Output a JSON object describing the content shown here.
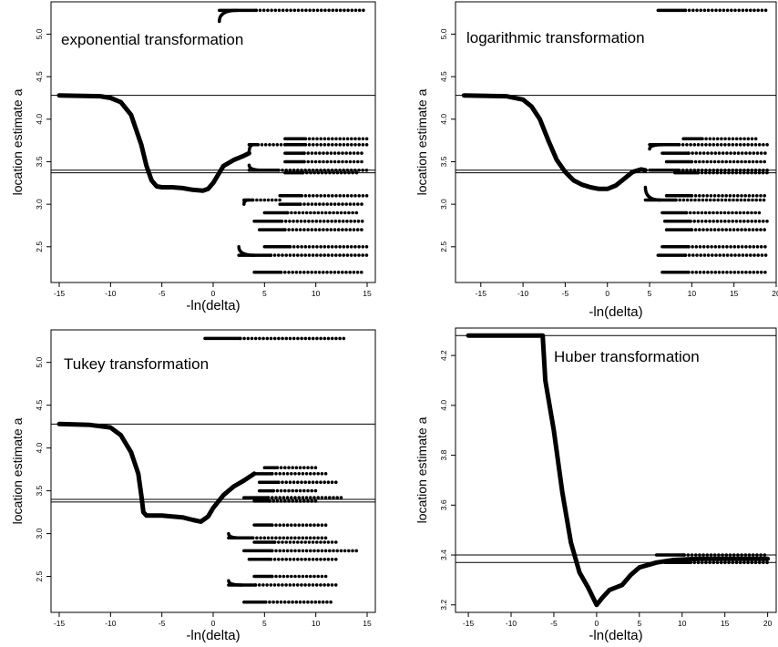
{
  "figure": {
    "ylabel": "location estimate   a",
    "xlabel": "-ln(delta)"
  },
  "chart_data": [
    {
      "type": "scatter",
      "title": "exponential transformation",
      "xlabel": "-ln(delta)",
      "ylabel": "location estimate   a",
      "xlim": [
        -15.8,
        15.8
      ],
      "ylim": [
        2.08,
        5.38
      ],
      "xticks": [
        -15,
        -10,
        -5,
        0,
        5,
        10,
        15
      ],
      "yticks": [
        2.5,
        3.0,
        3.5,
        4.0,
        4.5,
        5.0
      ],
      "hlines": [
        4.28,
        3.4,
        3.37
      ],
      "curve": [
        [
          -15,
          4.28
        ],
        [
          -11,
          4.27
        ],
        [
          -10,
          4.25
        ],
        [
          -9,
          4.2
        ],
        [
          -8,
          4.05
        ],
        [
          -7,
          3.7
        ],
        [
          -6.5,
          3.45
        ],
        [
          -6,
          3.28
        ],
        [
          -5.5,
          3.21
        ],
        [
          -5,
          3.2
        ],
        [
          -4,
          3.2
        ],
        [
          -3,
          3.19
        ],
        [
          -2,
          3.17
        ],
        [
          -1,
          3.16
        ],
        [
          -0.5,
          3.18
        ],
        [
          0,
          3.25
        ],
        [
          0.5,
          3.35
        ],
        [
          1,
          3.45
        ],
        [
          2,
          3.52
        ],
        [
          3,
          3.57
        ],
        [
          3.5,
          3.6
        ]
      ],
      "branches": [
        {
          "y": 5.28,
          "x": [
            0.6,
            15
          ],
          "start_y": 5.15
        },
        {
          "y": 3.7,
          "x": [
            3.5,
            7
          ],
          "start_y": 3.6
        },
        {
          "y": 3.77,
          "x": [
            7,
            15
          ]
        },
        {
          "y": 3.7,
          "x": [
            7,
            15
          ]
        },
        {
          "y": 3.6,
          "x": [
            7,
            14.5
          ]
        },
        {
          "y": 3.5,
          "x": [
            7,
            14.5
          ]
        },
        {
          "y": 3.4,
          "x": [
            3.5,
            15
          ],
          "start_y": 3.46
        },
        {
          "y": 3.37,
          "x": [
            7,
            14
          ]
        },
        {
          "y": 3.1,
          "x": [
            6.5,
            15
          ]
        },
        {
          "y": 3.05,
          "x": [
            3,
            6.5
          ],
          "start_y": 3.0
        },
        {
          "y": 3.0,
          "x": [
            6.5,
            14.5
          ]
        },
        {
          "y": 2.9,
          "x": [
            5,
            14
          ]
        },
        {
          "y": 2.8,
          "x": [
            4,
            14.8
          ]
        },
        {
          "y": 2.7,
          "x": [
            4.5,
            14.5
          ]
        },
        {
          "y": 2.5,
          "x": [
            5,
            15
          ]
        },
        {
          "y": 2.4,
          "x": [
            2.5,
            15
          ],
          "start_y": 2.5
        },
        {
          "y": 2.2,
          "x": [
            4,
            14.5
          ]
        }
      ]
    },
    {
      "type": "scatter",
      "title": "logarithmic transformation",
      "xlabel": "-ln(delta)",
      "ylabel": "location estimate   a",
      "xlim": [
        -18,
        20
      ],
      "ylim": [
        2.08,
        5.38
      ],
      "xticks": [
        -15,
        -10,
        -5,
        0,
        5,
        10,
        15,
        20
      ],
      "yticks": [
        2.5,
        3.0,
        3.5,
        4.0,
        4.5,
        5.0
      ],
      "hlines": [
        4.28,
        3.4,
        3.37
      ],
      "curve": [
        [
          -17,
          4.28
        ],
        [
          -12,
          4.27
        ],
        [
          -10,
          4.23
        ],
        [
          -9,
          4.15
        ],
        [
          -8,
          4.0
        ],
        [
          -7,
          3.75
        ],
        [
          -6,
          3.52
        ],
        [
          -5,
          3.38
        ],
        [
          -4,
          3.28
        ],
        [
          -3,
          3.23
        ],
        [
          -2,
          3.2
        ],
        [
          -1,
          3.18
        ],
        [
          0,
          3.18
        ],
        [
          1,
          3.22
        ],
        [
          2,
          3.3
        ],
        [
          3,
          3.38
        ],
        [
          4,
          3.41
        ],
        [
          4.5,
          3.4
        ]
      ],
      "branches": [
        {
          "y": 5.28,
          "x": [
            6,
            19
          ]
        },
        {
          "y": 3.77,
          "x": [
            9,
            18
          ]
        },
        {
          "y": 3.7,
          "x": [
            5,
            19
          ],
          "start_y": 3.65
        },
        {
          "y": 3.6,
          "x": [
            6.5,
            19
          ]
        },
        {
          "y": 3.5,
          "x": [
            7,
            19
          ]
        },
        {
          "y": 3.4,
          "x": [
            5,
            19
          ]
        },
        {
          "y": 3.37,
          "x": [
            8,
            19
          ]
        },
        {
          "y": 3.1,
          "x": [
            7,
            19
          ]
        },
        {
          "y": 3.05,
          "x": [
            4.5,
            19
          ],
          "start_y": 3.2
        },
        {
          "y": 2.9,
          "x": [
            6.5,
            18
          ]
        },
        {
          "y": 2.8,
          "x": [
            6.8,
            19
          ]
        },
        {
          "y": 2.7,
          "x": [
            7,
            19
          ]
        },
        {
          "y": 2.5,
          "x": [
            6.5,
            19
          ]
        },
        {
          "y": 2.4,
          "x": [
            6,
            19
          ]
        },
        {
          "y": 2.2,
          "x": [
            6.5,
            19
          ]
        }
      ]
    },
    {
      "type": "scatter",
      "title": "Tukey transformation",
      "xlabel": "-ln(delta)",
      "ylabel": "location estimate   a",
      "xlim": [
        -15.8,
        15.8
      ],
      "ylim": [
        2.08,
        5.38
      ],
      "xticks": [
        -15,
        -10,
        -5,
        0,
        5,
        10,
        15
      ],
      "yticks": [
        2.5,
        3.0,
        3.5,
        4.0,
        4.5,
        5.0
      ],
      "hlines": [
        4.28,
        3.4,
        3.37
      ],
      "curve": [
        [
          -15,
          4.28
        ],
        [
          -12,
          4.27
        ],
        [
          -10,
          4.24
        ],
        [
          -9,
          4.15
        ],
        [
          -8,
          3.95
        ],
        [
          -7.3,
          3.7
        ],
        [
          -7,
          3.45
        ],
        [
          -6.8,
          3.25
        ],
        [
          -6.5,
          3.21
        ],
        [
          -5,
          3.21
        ],
        [
          -4,
          3.2
        ],
        [
          -3,
          3.19
        ],
        [
          -2,
          3.16
        ],
        [
          -1.2,
          3.14
        ],
        [
          -0.5,
          3.2
        ],
        [
          0,
          3.3
        ],
        [
          1,
          3.45
        ],
        [
          2,
          3.55
        ],
        [
          3,
          3.62
        ],
        [
          4,
          3.7
        ]
      ],
      "branches": [
        {
          "y": 5.28,
          "x": [
            -0.8,
            13
          ]
        },
        {
          "y": 3.77,
          "x": [
            5,
            10
          ]
        },
        {
          "y": 3.7,
          "x": [
            4,
            11
          ]
        },
        {
          "y": 3.6,
          "x": [
            4.5,
            12
          ]
        },
        {
          "y": 3.5,
          "x": [
            4.5,
            10
          ]
        },
        {
          "y": 3.42,
          "x": [
            3,
            12.5
          ]
        },
        {
          "y": 3.38,
          "x": [
            4,
            10
          ]
        },
        {
          "y": 3.1,
          "x": [
            4,
            11
          ]
        },
        {
          "y": 2.95,
          "x": [
            1.5,
            11
          ],
          "start_y": 3.0
        },
        {
          "y": 2.9,
          "x": [
            4,
            12
          ]
        },
        {
          "y": 2.8,
          "x": [
            3,
            14
          ]
        },
        {
          "y": 2.7,
          "x": [
            3.5,
            12
          ]
        },
        {
          "y": 2.5,
          "x": [
            4,
            11
          ]
        },
        {
          "y": 2.4,
          "x": [
            1.5,
            12
          ],
          "start_y": 2.45
        },
        {
          "y": 2.2,
          "x": [
            3,
            11.5
          ]
        }
      ]
    },
    {
      "type": "line",
      "title": "Huber transformation",
      "xlabel": "-ln(delta)",
      "ylabel": "location estimate   a",
      "xlim": [
        -16.5,
        21
      ],
      "ylim": [
        3.17,
        4.31
      ],
      "xticks": [
        -15,
        -10,
        -5,
        0,
        5,
        10,
        15,
        20
      ],
      "yticks": [
        3.2,
        3.4,
        3.6,
        3.8,
        4.0,
        4.2
      ],
      "hlines": [
        4.28,
        3.4,
        3.37
      ],
      "curve": [
        [
          -15,
          4.28
        ],
        [
          -6.3,
          4.28
        ],
        [
          -6,
          4.1
        ],
        [
          -5,
          3.9
        ],
        [
          -4,
          3.65
        ],
        [
          -3,
          3.45
        ],
        [
          -2,
          3.33
        ],
        [
          -1,
          3.27
        ],
        [
          0,
          3.2
        ],
        [
          0.7,
          3.23
        ],
        [
          1.5,
          3.26
        ],
        [
          3,
          3.28
        ],
        [
          4,
          3.32
        ],
        [
          5,
          3.35
        ],
        [
          7,
          3.37
        ],
        [
          9,
          3.38
        ],
        [
          12,
          3.385
        ],
        [
          20,
          3.385
        ]
      ],
      "branches": [
        {
          "y": 3.4,
          "x": [
            7,
            20
          ]
        },
        {
          "y": 3.37,
          "x": [
            8,
            20
          ]
        }
      ]
    }
  ]
}
